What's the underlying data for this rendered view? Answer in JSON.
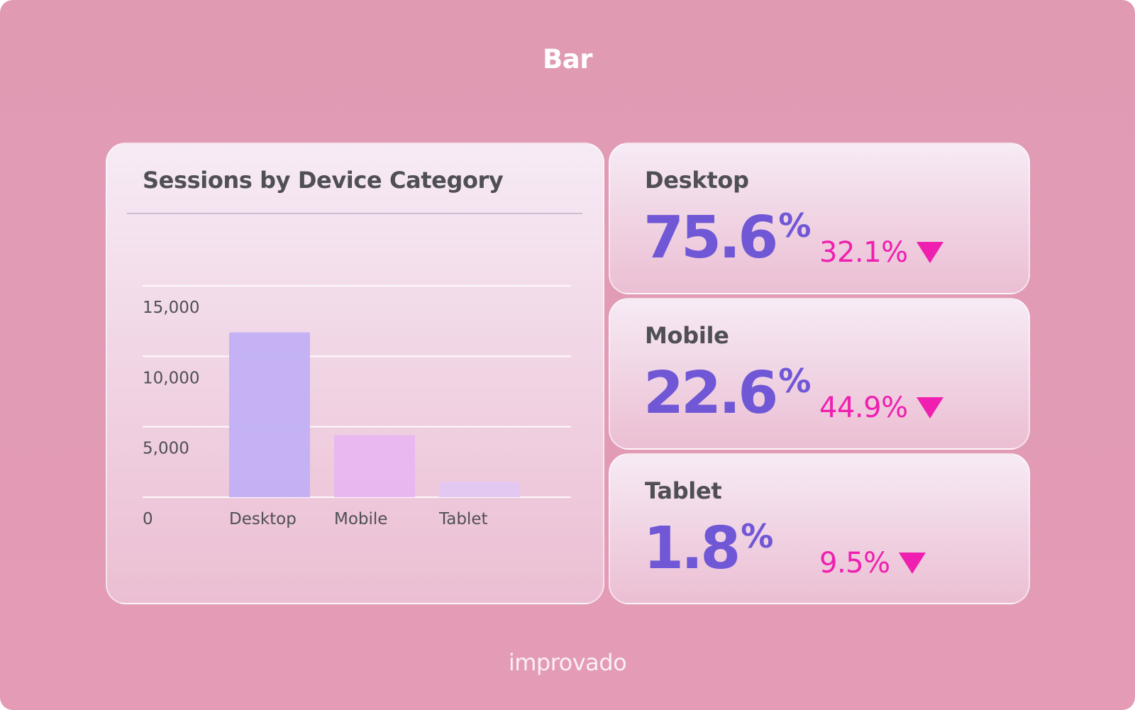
{
  "page": {
    "title": "Bar",
    "brand": "improvado"
  },
  "chart_data": {
    "type": "bar",
    "title": "Sessions by Device Category",
    "categories": [
      "Desktop",
      "Mobile",
      "Tablet"
    ],
    "values": [
      11700,
      4400,
      1100
    ],
    "ylim": [
      0,
      15000
    ],
    "yticks": [
      0,
      5000,
      10000,
      15000
    ],
    "ytick_labels": [
      "0",
      "5,000",
      "10,000",
      "15,000"
    ],
    "grid": true,
    "bar_colors": [
      "#c1b0f5",
      "#e8b6f0",
      "#e2c8f2"
    ]
  },
  "metrics": [
    {
      "label": "Desktop",
      "value": "75.6",
      "unit": "%",
      "change": "32.1%",
      "direction": "down-arrow"
    },
    {
      "label": "Mobile",
      "value": "22.6",
      "unit": "%",
      "change": "44.9%",
      "direction": "down-arrow"
    },
    {
      "label": "Tablet",
      "value": "1.8",
      "unit": "%",
      "change": "9.5%",
      "direction": "down-arrow"
    }
  ],
  "colors": {
    "background": "#e29bb5",
    "value": "#7057d6",
    "change": "#ef1faf",
    "text": "#4f4f55"
  }
}
